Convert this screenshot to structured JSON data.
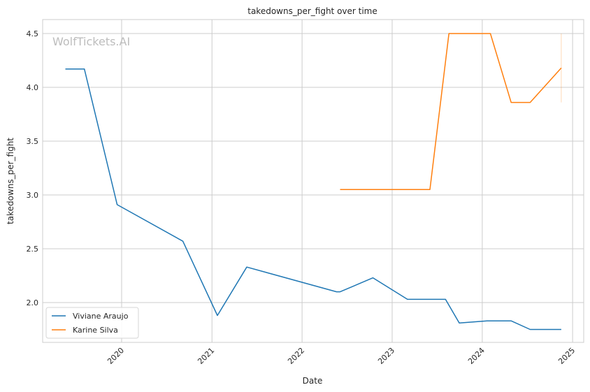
{
  "chart_data": {
    "type": "line",
    "title": "takedowns_per_fight over time",
    "xlabel": "Date",
    "ylabel": "takedowns_per_fight",
    "watermark": "WolfTickets.AI",
    "xlim": [
      "2019-02-15",
      "2025-02-15"
    ],
    "ylim": [
      1.63,
      4.63
    ],
    "x_ticks": [
      "2020-01-01",
      "2021-01-01",
      "2022-01-01",
      "2023-01-01",
      "2024-01-01",
      "2025-01-01"
    ],
    "x_tick_labels": [
      "2020",
      "2021",
      "2022",
      "2023",
      "2024",
      "2025"
    ],
    "y_ticks": [
      2.0,
      2.5,
      3.0,
      3.5,
      4.0,
      4.5
    ],
    "y_tick_labels": [
      "2.0",
      "2.5",
      "3.0",
      "3.5",
      "4.0",
      "4.5"
    ],
    "grid": true,
    "legend_position": "lower-left",
    "series": [
      {
        "name": "Viviane Araujo",
        "color": "#1f77b4",
        "x": [
          "2019-05-18",
          "2019-08-03",
          "2019-12-14",
          "2020-09-05",
          "2021-01-23",
          "2021-05-22",
          "2022-05-21",
          "2022-06-04",
          "2022-10-15",
          "2023-03-04",
          "2023-08-05",
          "2023-09-30",
          "2024-01-20",
          "2024-04-27",
          "2024-07-13",
          "2024-11-16"
        ],
        "y": [
          4.17,
          4.17,
          2.91,
          2.57,
          1.88,
          2.33,
          2.1,
          2.1,
          2.23,
          2.03,
          2.03,
          1.81,
          1.83,
          1.83,
          1.75,
          1.75
        ]
      },
      {
        "name": "Karine Silva",
        "color": "#ff7f0e",
        "x": [
          "2022-06-04",
          "2023-06-03",
          "2023-08-19",
          "2024-02-03",
          "2024-04-27",
          "2024-07-13",
          "2024-11-16"
        ],
        "y": [
          3.05,
          3.05,
          4.5,
          4.5,
          3.86,
          3.86,
          4.18
        ]
      }
    ],
    "band": {
      "x": "2024-11-16",
      "y_low": 3.86,
      "y_high": 4.5,
      "color": "#ff7f0e"
    }
  }
}
